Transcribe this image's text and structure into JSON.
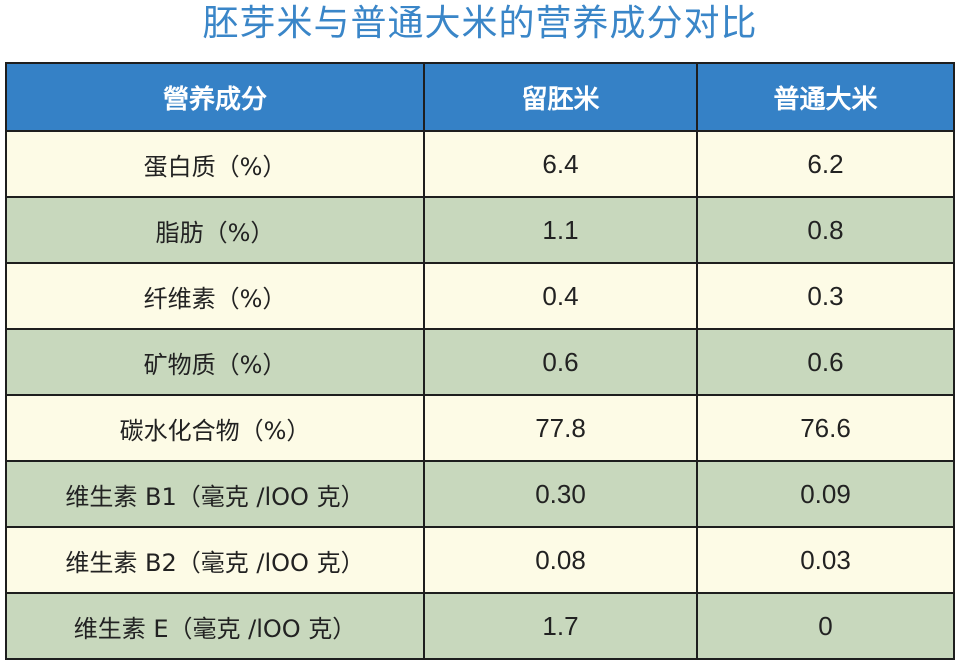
{
  "title": "胚芽米与普通大米的营养成分对比",
  "colors": {
    "title": "#3a86c8",
    "header_bg": "#3581c6",
    "row_light": "#fdfbe6",
    "row_green": "#c8d8bd"
  },
  "table": {
    "headers": [
      "營养成分",
      "留胚米",
      "普通大米"
    ],
    "rows": [
      {
        "nutrient": "蛋白质（%）",
        "embryo_rice": "6.4",
        "regular_rice": "6.2"
      },
      {
        "nutrient": "脂肪（%）",
        "embryo_rice": "1.1",
        "regular_rice": "0.8"
      },
      {
        "nutrient": "纤维素（%）",
        "embryo_rice": "0.4",
        "regular_rice": "0.3"
      },
      {
        "nutrient": "矿物质（%）",
        "embryo_rice": "0.6",
        "regular_rice": "0.6"
      },
      {
        "nutrient": "碳水化合物（%）",
        "embryo_rice": "77.8",
        "regular_rice": "76.6"
      },
      {
        "nutrient": "维生素 B1（毫克 /lOO 克）",
        "embryo_rice": "0.30",
        "regular_rice": "0.09"
      },
      {
        "nutrient": "维生素 B2（毫克 /lOO 克）",
        "embryo_rice": "0.08",
        "regular_rice": "0.03"
      },
      {
        "nutrient": "维生素 E（毫克 /lOO 克）",
        "embryo_rice": "1.7",
        "regular_rice": "0"
      }
    ]
  }
}
